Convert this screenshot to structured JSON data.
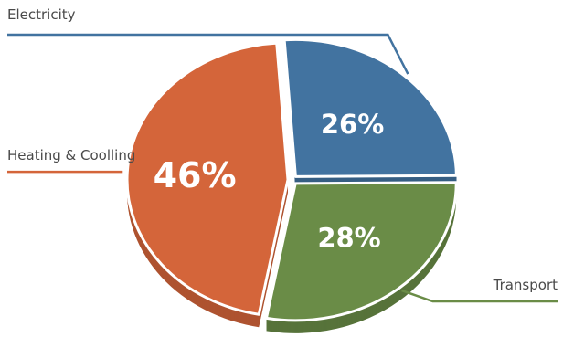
{
  "chart_data": {
    "type": "pie",
    "title": "",
    "slices": [
      {
        "label": "Electricity",
        "value": 26,
        "display": "26%",
        "color": "#4273a0"
      },
      {
        "label": "Transport",
        "value": 28,
        "display": "28%",
        "color": "#6a8c47"
      },
      {
        "label": "Heating & Coolling",
        "value": 46,
        "display": "46%",
        "color": "#d4653a"
      }
    ],
    "legend": "none",
    "labels_style": "callout",
    "style": "3d-tilted"
  }
}
